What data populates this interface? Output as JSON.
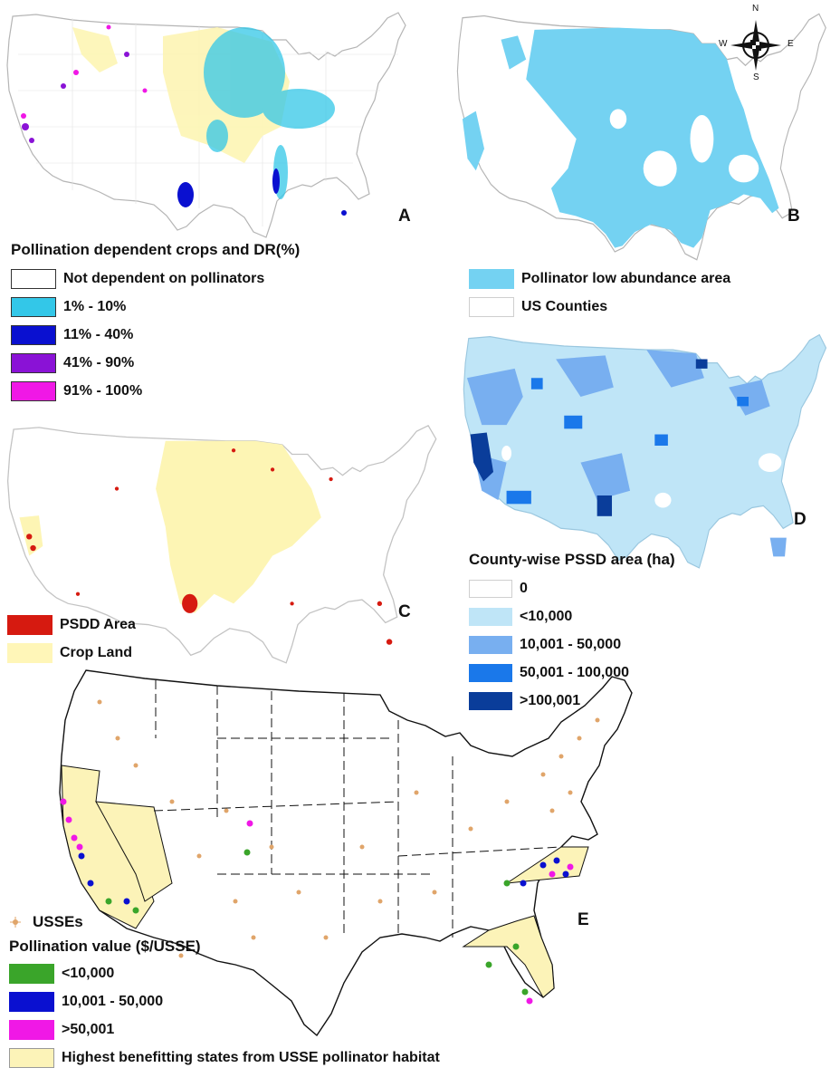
{
  "panels": {
    "a": {
      "letter": "A",
      "legend_title": "Pollination dependent crops and DR(%)",
      "items": [
        {
          "label": "Not dependent on pollinators",
          "color": "#ffffff"
        },
        {
          "label": "1% - 10%",
          "color": "#33c7e8"
        },
        {
          "label": "11% - 40%",
          "color": "#0a10d0"
        },
        {
          "label": "41% - 90%",
          "color": "#8a12d6"
        },
        {
          "label": "91% - 100%",
          "color": "#f018e6"
        }
      ]
    },
    "b": {
      "letter": "B",
      "items": [
        {
          "label": "Pollinator low abundance area",
          "color": "#74d2f2"
        },
        {
          "label": "US Counties",
          "color": "#ffffff"
        }
      ],
      "compass": {
        "n": "N",
        "s": "S",
        "e": "E",
        "w": "W"
      }
    },
    "c": {
      "letter": "C",
      "items": [
        {
          "label": "PSDD Area",
          "color": "#d61a10"
        },
        {
          "label": "Crop Land",
          "color": "#fff6b8"
        }
      ]
    },
    "d": {
      "letter": "D",
      "legend_title": "County-wise PSSD area (ha)",
      "items": [
        {
          "label": "0",
          "color": "#ffffff"
        },
        {
          "label": "<10,000",
          "color": "#bfe5f7"
        },
        {
          "label": "10,001 - 50,000",
          "color": "#78aff0"
        },
        {
          "label": "50,001 - 100,000",
          "color": "#1a78ea"
        },
        {
          "label": ">100,001",
          "color": "#0a3d9a"
        }
      ]
    },
    "e": {
      "letter": "E",
      "point_label": "USSEs",
      "point_color": "#e0a56a",
      "legend_title": "Pollination value ($/USSE)",
      "items": [
        {
          "label": "<10,000",
          "color": "#3aa52a"
        },
        {
          "label": "10,001 - 50,000",
          "color": "#0a10d0"
        },
        {
          "label": ">50,001",
          "color": "#f018e6"
        }
      ],
      "habitat_label": "Highest benefitting states from USSE pollinator habitat",
      "habitat_color": "#fcf3b8"
    }
  }
}
